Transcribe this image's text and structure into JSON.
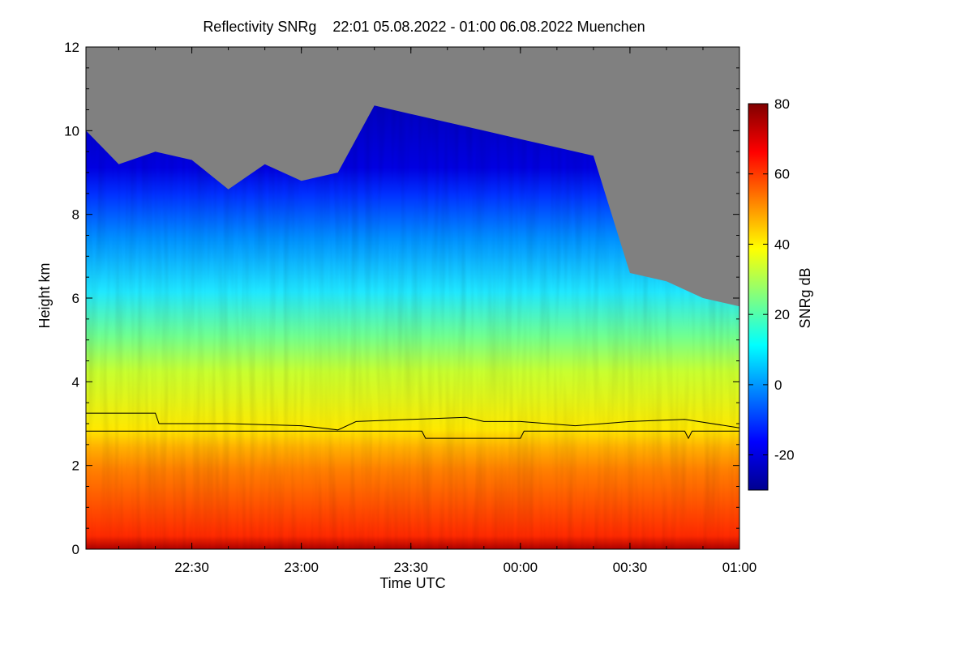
{
  "chart_data": {
    "type": "heatmap",
    "title": "Reflectivity SNRg    22:01 05.08.2022 - 01:00 06.08.2022 Muenchen",
    "xlabel": "Time UTC",
    "ylabel": "Height km",
    "xlim": [
      "22:01",
      "01:00"
    ],
    "ylim": [
      0,
      12
    ],
    "x_ticks": [
      {
        "label": "22:30",
        "minutes": 29
      },
      {
        "label": "23:00",
        "minutes": 59
      },
      {
        "label": "23:30",
        "minutes": 89
      },
      {
        "label": "00:00",
        "minutes": 119
      },
      {
        "label": "00:30",
        "minutes": 149
      },
      {
        "label": "01:00",
        "minutes": 179
      }
    ],
    "y_ticks": [
      0,
      2,
      4,
      6,
      8,
      10,
      12
    ],
    "colorbar": {
      "label": "SNRg dB",
      "min": -30,
      "max": 80,
      "ticks": [
        -20,
        0,
        20,
        40,
        60,
        80
      ],
      "colormap": "jet"
    },
    "no_signal_color": "#808080",
    "echo_top_km": [
      {
        "t": "22:01",
        "h": 10.0
      },
      {
        "t": "22:10",
        "h": 9.2
      },
      {
        "t": "22:20",
        "h": 9.5
      },
      {
        "t": "22:30",
        "h": 9.3
      },
      {
        "t": "22:40",
        "h": 8.6
      },
      {
        "t": "22:50",
        "h": 9.2
      },
      {
        "t": "23:00",
        "h": 8.8
      },
      {
        "t": "23:10",
        "h": 9.0
      },
      {
        "t": "23:20",
        "h": 10.6
      },
      {
        "t": "23:30",
        "h": 10.4
      },
      {
        "t": "23:40",
        "h": 10.2
      },
      {
        "t": "23:50",
        "h": 10.0
      },
      {
        "t": "00:00",
        "h": 9.8
      },
      {
        "t": "00:10",
        "h": 9.6
      },
      {
        "t": "00:20",
        "h": 9.4
      },
      {
        "t": "00:30",
        "h": 6.6
      },
      {
        "t": "00:40",
        "h": 6.4
      },
      {
        "t": "00:50",
        "h": 6.0
      },
      {
        "t": "01:00",
        "h": 5.8
      }
    ],
    "melting_layer_km": [
      {
        "t": "22:01",
        "h": 3.25
      },
      {
        "t": "22:20",
        "h": 3.25
      },
      {
        "t": "22:21",
        "h": 3.0
      },
      {
        "t": "22:40",
        "h": 3.0
      },
      {
        "t": "23:00",
        "h": 2.95
      },
      {
        "t": "23:10",
        "h": 2.85
      },
      {
        "t": "23:15",
        "h": 3.05
      },
      {
        "t": "23:30",
        "h": 3.1
      },
      {
        "t": "23:45",
        "h": 3.15
      },
      {
        "t": "23:50",
        "h": 3.05
      },
      {
        "t": "00:00",
        "h": 3.05
      },
      {
        "t": "00:15",
        "h": 2.95
      },
      {
        "t": "00:30",
        "h": 3.05
      },
      {
        "t": "00:45",
        "h": 3.1
      },
      {
        "t": "01:00",
        "h": 2.9
      }
    ],
    "step_line_km": [
      {
        "t": "22:01",
        "h": 2.82
      },
      {
        "t": "23:33",
        "h": 2.82
      },
      {
        "t": "23:34",
        "h": 2.65
      },
      {
        "t": "00:00",
        "h": 2.65
      },
      {
        "t": "00:01",
        "h": 2.82
      },
      {
        "t": "00:45",
        "h": 2.82
      },
      {
        "t": "00:46",
        "h": 2.65
      },
      {
        "t": "00:47",
        "h": 2.82
      },
      {
        "t": "01:00",
        "h": 2.82
      }
    ]
  }
}
